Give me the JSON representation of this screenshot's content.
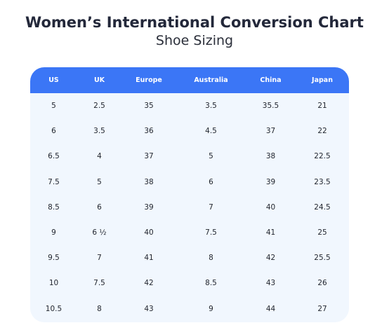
{
  "title": "Women’s International Conversion Chart",
  "subtitle": "Shoe Sizing",
  "table": {
    "headers": [
      "US",
      "UK",
      "Europe",
      "Australia",
      "China",
      "Japan"
    ],
    "rows": [
      [
        "5",
        "2.5",
        "35",
        "3.5",
        "35.5",
        "21"
      ],
      [
        "6",
        "3.5",
        "36",
        "4.5",
        "37",
        "22"
      ],
      [
        "6.5",
        "4",
        "37",
        "5",
        "38",
        "22.5"
      ],
      [
        "7.5",
        "5",
        "38",
        "6",
        "39",
        "23.5"
      ],
      [
        "8.5",
        "6",
        "39",
        "7",
        "40",
        "24.5"
      ],
      [
        "9",
        "6 ½",
        "40",
        "7.5",
        "41",
        "25"
      ],
      [
        "9.5",
        "7",
        "41",
        "8",
        "42",
        "25.5"
      ],
      [
        "10",
        "7.5",
        "42",
        "8.5",
        "43",
        "26"
      ],
      [
        "10.5",
        "8",
        "43",
        "9",
        "44",
        "27"
      ]
    ]
  },
  "colors": {
    "header_background": "#3b76f6",
    "table_background": "#f1f7fe",
    "header_text": "#ffffff"
  }
}
